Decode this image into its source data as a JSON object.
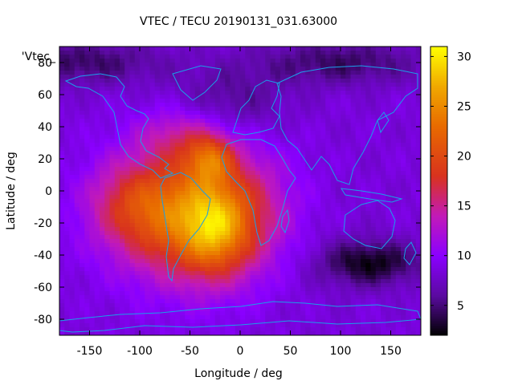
{
  "chart_data": {
    "type": "heatmap",
    "title": "VTEC / TECU 20190131_031.63000",
    "xlabel": "Longitude / deg",
    "ylabel": "Latitude / deg",
    "series_key": "'Vtec_",
    "xlim": [
      -180,
      180
    ],
    "ylim": [
      -90,
      90
    ],
    "xticks": [
      -150,
      -100,
      -50,
      0,
      50,
      100,
      150
    ],
    "yticks": [
      -80,
      -60,
      -40,
      -20,
      0,
      20,
      40,
      60,
      80
    ],
    "colorbar": {
      "range": [
        2,
        31
      ],
      "ticks": [
        5,
        10,
        15,
        20,
        25,
        30
      ],
      "stops": [
        {
          "v": 2,
          "c": "#000000"
        },
        {
          "v": 6,
          "c": "#5a0aa0"
        },
        {
          "v": 10,
          "c": "#8a00ff"
        },
        {
          "v": 14,
          "c": "#c21ab8"
        },
        {
          "v": 18,
          "c": "#d8321e"
        },
        {
          "v": 23,
          "c": "#e86a00"
        },
        {
          "v": 27,
          "c": "#f0a800"
        },
        {
          "v": 31,
          "c": "#ffff00"
        }
      ]
    },
    "background_vtec": 8.5,
    "features": [
      {
        "kind": "peak",
        "lon": -40,
        "lat": -15,
        "sx": 55,
        "sy": 28,
        "amp": 16
      },
      {
        "kind": "peak",
        "lon": -25,
        "lat": -25,
        "sx": 22,
        "sy": 18,
        "amp": 7
      },
      {
        "kind": "peak",
        "lon": -30,
        "lat": 20,
        "sx": 16,
        "sy": 10,
        "amp": 8
      },
      {
        "kind": "peak",
        "lon": -110,
        "lat": -8,
        "sx": 30,
        "sy": 18,
        "amp": 5
      },
      {
        "kind": "peak",
        "lon": -60,
        "lat": 35,
        "sx": 30,
        "sy": 12,
        "amp": 4
      },
      {
        "kind": "trough",
        "lon": 130,
        "lat": -45,
        "sx": 35,
        "sy": 10,
        "amp": -6
      },
      {
        "kind": "trough",
        "lon": -160,
        "lat": 80,
        "sx": 60,
        "sy": 10,
        "amp": -4
      },
      {
        "kind": "trough",
        "lon": 100,
        "lat": 80,
        "sx": 60,
        "sy": 10,
        "amp": -4
      },
      {
        "kind": "trough",
        "lon": -10,
        "lat": 55,
        "sx": 40,
        "sy": 15,
        "amp": -3
      },
      {
        "kind": "trough",
        "lon": 60,
        "lat": -25,
        "sx": 40,
        "sy": 30,
        "amp": -1
      }
    ]
  }
}
